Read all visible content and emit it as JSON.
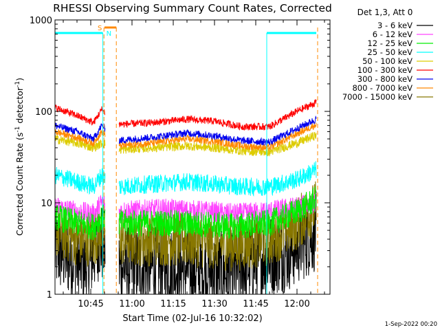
{
  "chart_data": {
    "type": "line",
    "title": "RHESSI Observing Summary Count Rates, Corrected",
    "xlabel": "Start Time (02-Jul-16 10:32:02)",
    "ylabel": "Corrected Count Rate (s",
    "ylabel_sup1": "-1",
    "ylabel_mid": " detector",
    "ylabel_sup2": "-1",
    "ylabel_end": ")",
    "yscale": "log",
    "ylim": [
      1,
      1000
    ],
    "xlim_minutes": [
      0,
      100
    ],
    "x_ticks": [
      {
        "label": "10:45",
        "minute": 13
      },
      {
        "label": "11:00",
        "minute": 28
      },
      {
        "label": "11:15",
        "minute": 43
      },
      {
        "label": "11:30",
        "minute": 58
      },
      {
        "label": "11:45",
        "minute": 73
      },
      {
        "label": "12:00",
        "minute": 88
      }
    ],
    "y_ticks": [
      {
        "label": "1",
        "value": 1
      },
      {
        "label": "10",
        "value": 10
      },
      {
        "label": "100",
        "value": 100
      },
      {
        "label": "1000",
        "value": 1000
      }
    ],
    "legend_title": "Det 1,3, Att 0",
    "series": [
      {
        "name": "3 - 6 keV",
        "color": "#000000",
        "points": [
          [
            0,
            3
          ],
          [
            6,
            2.5
          ],
          [
            12,
            2
          ],
          [
            16,
            4
          ],
          [
            23,
            2
          ],
          [
            40,
            2
          ],
          [
            55,
            1.8
          ],
          [
            65,
            1.7
          ],
          [
            75,
            2.5
          ],
          [
            85,
            3
          ],
          [
            95,
            5
          ]
        ],
        "noise": 0.45
      },
      {
        "name": "6 - 12 keV",
        "color": "#ff44ff",
        "points": [
          [
            0,
            9
          ],
          [
            8,
            8
          ],
          [
            14,
            7.5
          ],
          [
            17,
            10
          ],
          [
            23,
            8
          ],
          [
            40,
            8.5
          ],
          [
            55,
            8
          ],
          [
            65,
            7.5
          ],
          [
            78,
            8
          ],
          [
            88,
            9
          ],
          [
            95,
            10
          ]
        ],
        "noise": 0.12
      },
      {
        "name": "12 - 25 keV",
        "color": "#00ee00",
        "points": [
          [
            0,
            7
          ],
          [
            8,
            6
          ],
          [
            14,
            5.5
          ],
          [
            17,
            7
          ],
          [
            23,
            6
          ],
          [
            40,
            6
          ],
          [
            55,
            5.8
          ],
          [
            65,
            5.5
          ],
          [
            78,
            6
          ],
          [
            88,
            8
          ],
          [
            95,
            11
          ]
        ],
        "noise": 0.15
      },
      {
        "name": "25 - 50 keV",
        "color": "#00ffff",
        "points": [
          [
            0,
            20
          ],
          [
            8,
            17
          ],
          [
            14,
            15
          ],
          [
            17,
            20
          ],
          [
            23,
            15
          ],
          [
            35,
            16
          ],
          [
            48,
            17
          ],
          [
            58,
            16
          ],
          [
            68,
            15
          ],
          [
            78,
            15
          ],
          [
            88,
            18
          ],
          [
            95,
            23
          ]
        ],
        "noise": 0.1
      },
      {
        "name": "50 - 100 keV",
        "color": "#ddcc00",
        "points": [
          [
            0,
            50
          ],
          [
            8,
            45
          ],
          [
            14,
            40
          ],
          [
            17,
            45
          ],
          [
            23,
            38
          ],
          [
            35,
            40
          ],
          [
            48,
            42
          ],
          [
            58,
            40
          ],
          [
            68,
            37
          ],
          [
            78,
            36
          ],
          [
            88,
            45
          ],
          [
            95,
            55
          ]
        ],
        "noise": 0.05
      },
      {
        "name": "100 - 300 keV",
        "color": "#ff0000",
        "points": [
          [
            0,
            110
          ],
          [
            8,
            90
          ],
          [
            14,
            75
          ],
          [
            17,
            105
          ],
          [
            23,
            72
          ],
          [
            35,
            75
          ],
          [
            48,
            82
          ],
          [
            58,
            78
          ],
          [
            68,
            68
          ],
          [
            78,
            68
          ],
          [
            88,
            100
          ],
          [
            95,
            125
          ]
        ],
        "noise": 0.04
      },
      {
        "name": "300 - 800 keV",
        "color": "#0000ee",
        "points": [
          [
            0,
            70
          ],
          [
            8,
            60
          ],
          [
            14,
            50
          ],
          [
            17,
            70
          ],
          [
            23,
            48
          ],
          [
            35,
            52
          ],
          [
            48,
            58
          ],
          [
            58,
            54
          ],
          [
            68,
            48
          ],
          [
            78,
            46
          ],
          [
            88,
            65
          ],
          [
            95,
            82
          ]
        ],
        "noise": 0.04
      },
      {
        "name": "800 - 7000 keV",
        "color": "#ff8800",
        "points": [
          [
            0,
            60
          ],
          [
            8,
            52
          ],
          [
            14,
            45
          ],
          [
            17,
            60
          ],
          [
            23,
            42
          ],
          [
            35,
            45
          ],
          [
            48,
            50
          ],
          [
            58,
            47
          ],
          [
            68,
            42
          ],
          [
            78,
            40
          ],
          [
            88,
            57
          ],
          [
            95,
            72
          ]
        ],
        "noise": 0.04
      },
      {
        "name": "7000 - 15000 keV",
        "color": "#887700",
        "points": [
          [
            0,
            5
          ],
          [
            8,
            4
          ],
          [
            14,
            4
          ],
          [
            17,
            5
          ],
          [
            23,
            4
          ],
          [
            40,
            4
          ],
          [
            55,
            3.8
          ],
          [
            65,
            3.5
          ],
          [
            78,
            4
          ],
          [
            88,
            6
          ],
          [
            95,
            9
          ]
        ],
        "noise": 0.3
      }
    ],
    "gaps_minutes": [
      [
        18.2,
        23.3
      ]
    ],
    "saa_bars": {
      "color": "#00ffff",
      "segments": [
        [
          0,
          17.4
        ],
        [
          77,
          95
        ]
      ]
    },
    "night_lines": {
      "color": "#00ffff",
      "minutes": [
        17.4,
        77
      ]
    },
    "orange_lines": {
      "color": "#ff8800",
      "minutes": [
        17.8,
        22.3,
        95.5
      ]
    },
    "s_marker": {
      "label": "S",
      "color": "#ff8800",
      "minute_range": [
        18,
        22.3
      ]
    },
    "n_marker": {
      "label": "N",
      "color": "#00ffff"
    },
    "timestamp": "1-Sep-2022 00:20"
  }
}
